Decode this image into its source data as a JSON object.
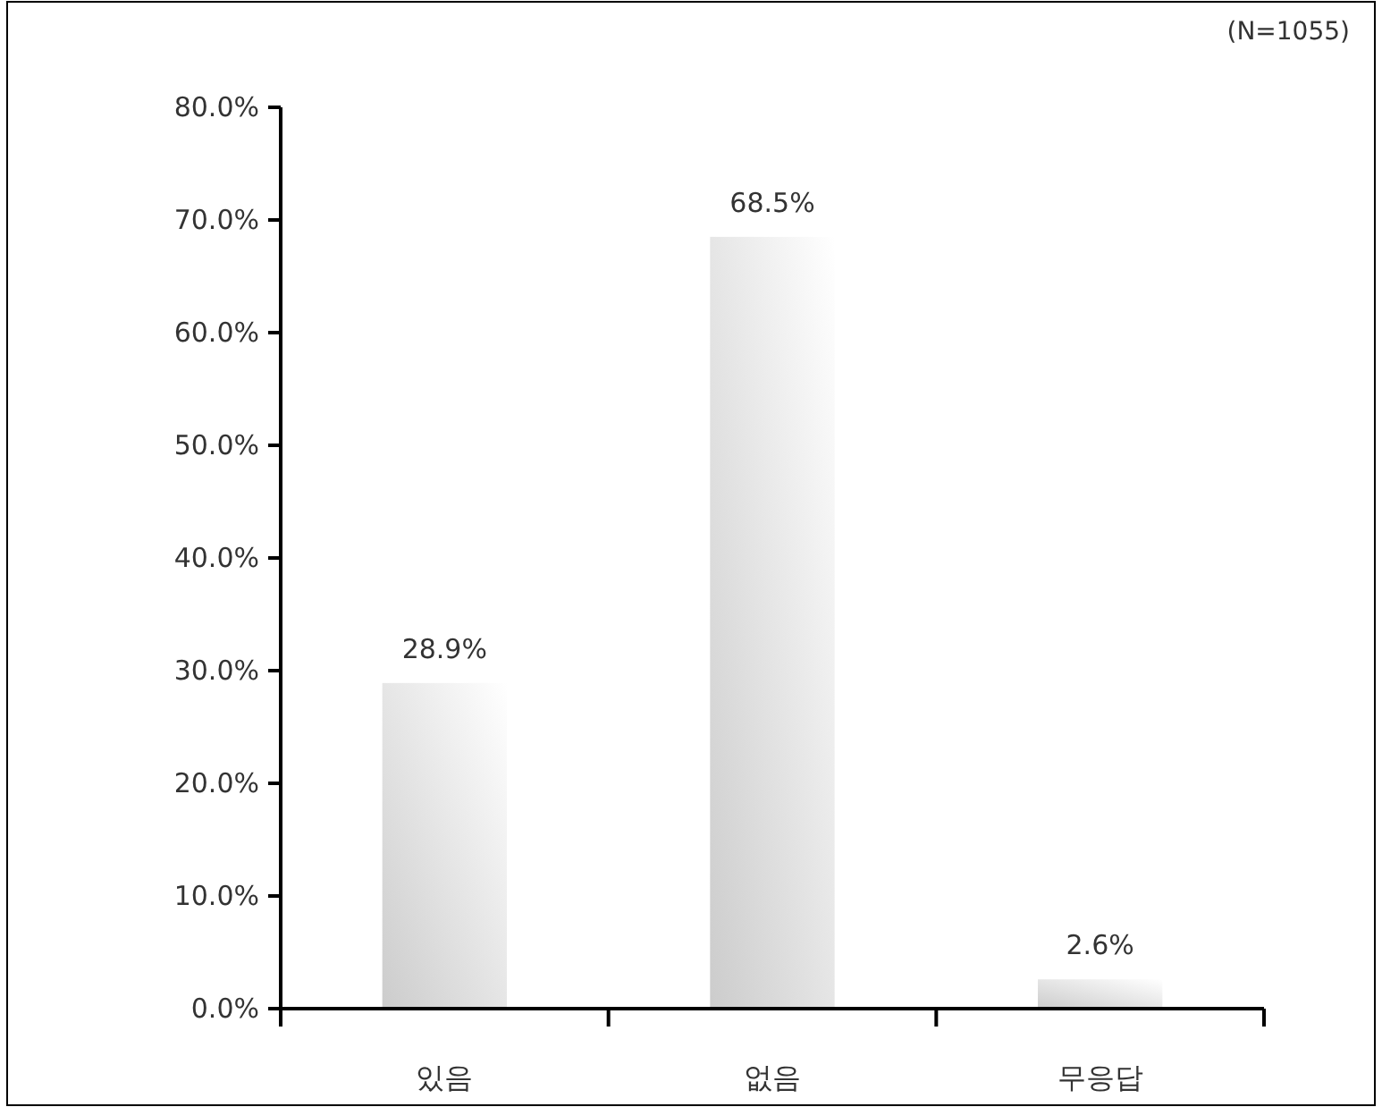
{
  "chart_data": {
    "type": "bar",
    "annotations": [
      "(N=1055)"
    ],
    "categories": [
      "있음",
      "없음",
      "무응답"
    ],
    "values": [
      28.9,
      68.5,
      2.6
    ],
    "value_labels": [
      "28.9%",
      "68.5%",
      "2.6%"
    ],
    "color": "#cccccc",
    "ylim": [
      0,
      80
    ],
    "yticks": [
      {
        "value": 0,
        "label": "0.0%"
      },
      {
        "value": 10,
        "label": "10.0%"
      },
      {
        "value": 20,
        "label": "20.0%"
      },
      {
        "value": 30,
        "label": "30.0%"
      },
      {
        "value": 40,
        "label": "40.0%"
      },
      {
        "value": 50,
        "label": "50.0%"
      },
      {
        "value": 60,
        "label": "60.0%"
      },
      {
        "value": 70,
        "label": "70.0%"
      },
      {
        "value": 80,
        "label": "80.0%"
      }
    ],
    "grid": false
  }
}
